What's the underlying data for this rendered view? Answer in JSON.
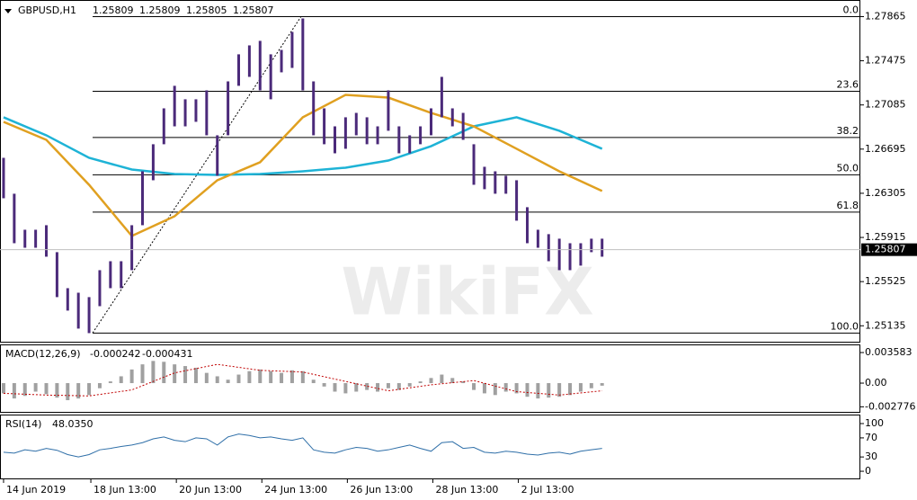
{
  "chart_data": [
    {
      "type": "ohlc",
      "symbol": "GBPUSD,H1",
      "quote": [
        1.25809,
        1.25809,
        1.25805,
        1.25807
      ],
      "watermark": "WikiFX",
      "color": "#4b2a7a",
      "x": [
        0,
        6,
        12,
        18,
        24,
        30,
        36,
        42,
        48,
        54,
        60,
        66,
        72,
        78,
        84,
        90,
        96,
        102,
        108,
        114,
        120,
        126,
        132,
        138,
        144,
        150,
        156,
        162,
        168,
        174,
        180,
        186,
        192,
        198,
        204,
        210,
        216,
        222,
        228,
        234,
        240,
        246,
        252,
        258,
        264,
        270,
        276,
        282,
        288,
        294,
        300,
        306,
        312,
        318,
        324,
        330,
        336
      ],
      "high": [
        1.26618,
        1.26301,
        1.25983,
        1.25983,
        1.26023,
        1.25785,
        1.25467,
        1.25427,
        1.25388,
        1.25626,
        1.25705,
        1.25705,
        1.26023,
        1.26499,
        1.26738,
        1.27055,
        1.27254,
        1.27135,
        1.27135,
        1.27214,
        1.26817,
        1.27293,
        1.27532,
        1.27611,
        1.27651,
        1.27532,
        1.27571,
        1.2773,
        1.27849,
        1.27293,
        1.27055,
        1.26896,
        1.26976,
        1.27015,
        1.26976,
        1.26896,
        1.27214,
        1.26896,
        1.26817,
        1.26896,
        1.27055,
        1.27333,
        1.27055,
        1.27015,
        1.26738,
        1.26539,
        1.26499,
        1.2646,
        1.2642,
        1.26182,
        1.25983,
        1.25944,
        1.25904,
        1.25864,
        1.25864,
        1.25904,
        1.25904
      ],
      "low": [
        1.26261,
        1.25864,
        1.25824,
        1.25824,
        1.25745,
        1.25388,
        1.25269,
        1.2511,
        1.2507,
        1.25308,
        1.25467,
        1.25467,
        1.25626,
        1.26023,
        1.2642,
        1.26738,
        1.26896,
        1.26896,
        1.26936,
        1.26817,
        1.2646,
        1.26817,
        1.27254,
        1.27333,
        1.27214,
        1.27135,
        1.27373,
        1.27412,
        1.27214,
        1.26817,
        1.26738,
        1.26658,
        1.26698,
        1.26817,
        1.26738,
        1.26738,
        1.26857,
        1.26658,
        1.26658,
        1.26738,
        1.26817,
        1.26976,
        1.26896,
        1.26777,
        1.2638,
        1.26341,
        1.26301,
        1.26301,
        1.26063,
        1.25864,
        1.25824,
        1.25705,
        1.25626,
        1.25626,
        1.25666,
        1.25785,
        1.25745
      ],
      "ma": [
        {
          "color": "#1eb3d6",
          "x": [
            0,
            24,
            48,
            72,
            96,
            120,
            144,
            168,
            192,
            216,
            240,
            264,
            288,
            312,
            336
          ],
          "values": [
            1.26976,
            1.26817,
            1.26618,
            1.26515,
            1.26475,
            1.26467,
            1.26475,
            1.26499,
            1.26531,
            1.26594,
            1.26721,
            1.26896,
            1.26976,
            1.26857,
            1.26698
          ]
        },
        {
          "color": "#e0a020",
          "x": [
            0,
            24,
            48,
            72,
            96,
            120,
            144,
            168,
            192,
            216,
            240,
            264,
            288,
            312,
            336
          ],
          "values": [
            1.26936,
            1.26777,
            1.2638,
            1.25928,
            1.26102,
            1.2642,
            1.26579,
            1.26976,
            1.27174,
            1.2715,
            1.27015,
            1.26896,
            1.26698,
            1.26499,
            1.26325
          ]
        }
      ],
      "fib": {
        "low": 1.25071,
        "high": 1.27865,
        "low_x": 50,
        "high_x": 167,
        "levels": [
          {
            "value": 0,
            "label": "0.0"
          },
          23.6,
          38.2,
          {
            "value": 50,
            "label": "50.0"
          },
          61.8,
          {
            "value": 100,
            "label": "100.0"
          }
        ]
      },
      "xlim": [
        -2,
        481
      ],
      "xticks": [
        {
          "value": 0,
          "label": "14 Jun 2019"
        },
        {
          "value": 49,
          "label": "18 Jun 13:00"
        },
        {
          "value": 97,
          "label": "20 Jun 13:00"
        },
        {
          "value": 145,
          "label": "24 Jun 13:00"
        },
        {
          "value": 193,
          "label": "26 Jun 13:00"
        },
        {
          "value": 241,
          "label": "28 Jun 13:00"
        },
        {
          "value": 289,
          "label": "2 Jul 13:00"
        }
      ],
      "ylim": [
        1.2501,
        1.2798
      ],
      "yticks": [
        1.27865,
        1.27475,
        1.27085,
        1.26695,
        1.26305,
        1.25915,
        1.25525,
        1.25135
      ]
    },
    {
      "type": "macd",
      "label": "MACD(12,26,9)",
      "readout": [
        -0.000242,
        -0.000431
      ],
      "color": "#a0a0a0",
      "signal_color": "#c00000",
      "x": [
        0,
        6,
        12,
        18,
        24,
        30,
        36,
        42,
        48,
        54,
        60,
        66,
        72,
        78,
        84,
        90,
        96,
        102,
        108,
        114,
        120,
        126,
        132,
        138,
        144,
        150,
        156,
        162,
        168,
        174,
        180,
        186,
        192,
        198,
        204,
        210,
        216,
        222,
        228,
        234,
        240,
        246,
        252,
        258,
        264,
        270,
        276,
        282,
        288,
        294,
        300,
        306,
        312,
        318,
        324,
        330,
        336
      ],
      "values": [
        -0.0012,
        -0.0018,
        -0.0015,
        -0.001,
        -0.0013,
        -0.0017,
        -0.002,
        -0.0018,
        -0.0014,
        -0.0006,
        0.0002,
        0.0008,
        0.0016,
        0.0022,
        0.0026,
        0.0025,
        0.0022,
        0.002,
        0.0018,
        0.0012,
        0.0008,
        0.0004,
        0.001,
        0.0014,
        0.0016,
        0.0014,
        0.0012,
        0.0015,
        0.0014,
        0.0004,
        -0.0004,
        -0.001,
        -0.0012,
        -0.001,
        -0.0008,
        -0.001,
        -0.0006,
        -0.0008,
        -0.0004,
        0.0002,
        0.0006,
        0.001,
        0.0006,
        0.0002,
        -0.0008,
        -0.0012,
        -0.0014,
        -0.001,
        -0.0012,
        -0.0016,
        -0.0018,
        -0.0017,
        -0.0016,
        -0.0014,
        -0.001,
        -0.0006,
        -0.0003
      ],
      "signal_x": [
        0,
        24,
        48,
        72,
        96,
        120,
        144,
        168,
        192,
        216,
        240,
        264,
        288,
        312,
        336
      ],
      "signal": [
        -0.0012,
        -0.0014,
        -0.0015,
        -0.0008,
        0.0012,
        0.0022,
        0.0015,
        0.0013,
        0.0002,
        -0.0009,
        -0.0002,
        0.0003,
        -0.001,
        -0.0014,
        -0.0009
      ],
      "ylim": [
        -0.00337,
        0.00443
      ],
      "yticks": [
        0.003583,
        {
          "value": 0,
          "label": "0.00"
        },
        -0.002776
      ]
    },
    {
      "type": "line",
      "label": "RSI(14)",
      "readout": {
        "value": 48.035,
        "label": "48.0350"
      },
      "color": "#2f6fa8",
      "x": [
        0,
        6,
        12,
        18,
        24,
        30,
        36,
        42,
        48,
        54,
        60,
        66,
        72,
        78,
        84,
        90,
        96,
        102,
        108,
        114,
        120,
        126,
        132,
        138,
        144,
        150,
        156,
        162,
        168,
        174,
        180,
        186,
        192,
        198,
        204,
        210,
        216,
        222,
        228,
        234,
        240,
        246,
        252,
        258,
        264,
        270,
        276,
        282,
        288,
        294,
        300,
        306,
        312,
        318,
        324,
        330,
        336
      ],
      "values": [
        40,
        38,
        45,
        42,
        48,
        44,
        35,
        30,
        35,
        45,
        48,
        52,
        55,
        60,
        68,
        72,
        65,
        62,
        70,
        68,
        55,
        72,
        78,
        75,
        70,
        72,
        68,
        65,
        70,
        45,
        40,
        38,
        45,
        50,
        48,
        42,
        45,
        50,
        55,
        48,
        42,
        60,
        62,
        48,
        50,
        40,
        38,
        42,
        40,
        36,
        34,
        38,
        40,
        36,
        42,
        45,
        48
      ],
      "ylim": [
        -15,
        117
      ],
      "yticks": [
        100,
        70,
        30,
        0
      ]
    }
  ]
}
